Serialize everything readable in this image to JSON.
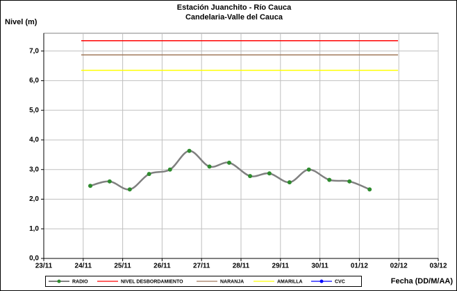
{
  "chart_data": {
    "type": "line",
    "title": "Estación Juanchito - Río Cauca",
    "subtitle": "Candelaria-Valle del Cauca",
    "y_label": "Nivel (m)",
    "x_label": "Fecha (DD/M/AA)",
    "xlim": [
      0,
      10
    ],
    "xticks": [
      {
        "value": 0,
        "label": "23/11"
      },
      {
        "value": 1,
        "label": "24/11"
      },
      {
        "value": 2,
        "label": "25/11"
      },
      {
        "value": 3,
        "label": "26/11"
      },
      {
        "value": 4,
        "label": "27/11"
      },
      {
        "value": 5,
        "label": "28/11"
      },
      {
        "value": 6,
        "label": "29/11"
      },
      {
        "value": 7,
        "label": "30/11"
      },
      {
        "value": 8,
        "label": "01/12"
      },
      {
        "value": 9,
        "label": "02/12"
      },
      {
        "value": 10,
        "label": "03/12"
      }
    ],
    "ylim": [
      0,
      7.6
    ],
    "yticks": [
      {
        "value": 0,
        "label": "0,0"
      },
      {
        "value": 1,
        "label": "1,0"
      },
      {
        "value": 2,
        "label": "2,0"
      },
      {
        "value": 3,
        "label": "3,0"
      },
      {
        "value": 4,
        "label": "4,0"
      },
      {
        "value": 5,
        "label": "5,0"
      },
      {
        "value": 6,
        "label": "6,0"
      },
      {
        "value": 7,
        "label": "7,0"
      }
    ],
    "grid": true,
    "legend": "bottom",
    "series": [
      {
        "name": "RADIO",
        "color": "#808080",
        "marker_color": "#2e8b2e",
        "smooth": true,
        "x": [
          1.18,
          1.67,
          2.18,
          2.67,
          3.2,
          3.69,
          4.2,
          4.7,
          5.23,
          5.72,
          6.23,
          6.72,
          7.24,
          7.75,
          8.26
        ],
        "values": [
          2.45,
          2.6,
          2.33,
          2.85,
          3.0,
          3.63,
          3.1,
          3.23,
          2.78,
          2.87,
          2.57,
          3.0,
          2.65,
          2.6,
          2.33
        ]
      },
      {
        "name": "NIVEL DESBORDAMIENTO",
        "color": "#ff0000",
        "x": [
          0.95,
          8.98
        ],
        "values": [
          7.35,
          7.35
        ]
      },
      {
        "name": "NARANJA",
        "color": "#a0785a",
        "x": [
          0.95,
          8.98
        ],
        "values": [
          6.87,
          6.87
        ]
      },
      {
        "name": "AMARILLA",
        "color": "#ffff00",
        "x": [
          0.95,
          8.98
        ],
        "values": [
          6.35,
          6.35
        ]
      },
      {
        "name": "CVC",
        "color": "#0000ff",
        "marker_color": "#0000ff",
        "x": [],
        "values": []
      }
    ]
  }
}
